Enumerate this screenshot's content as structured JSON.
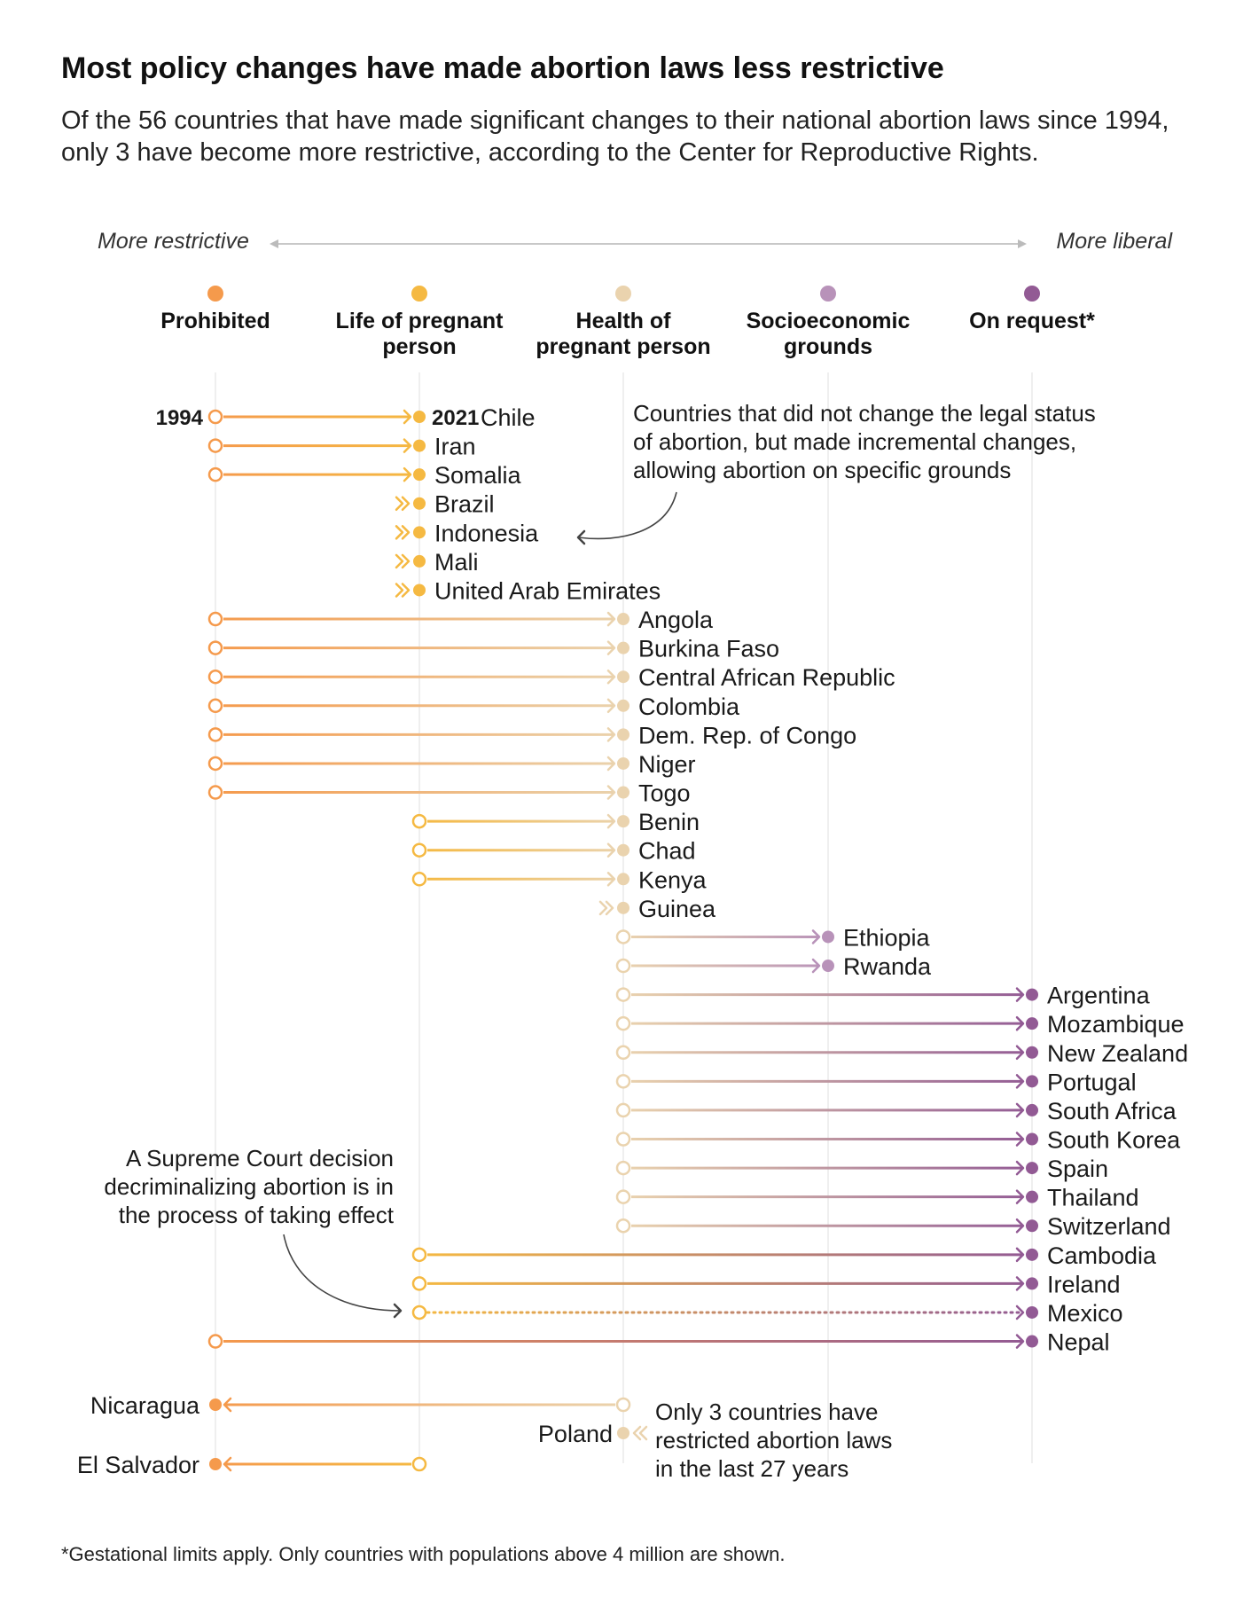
{
  "title": "Most policy changes have made abortion laws less restrictive",
  "subtitle": "Of the 56 countries that have made significant changes to their national abortion laws since 1994, only 3 have become more restrictive, according to the Center for Reproductive Rights.",
  "footnote": "*Gestational limits apply. Only countries with populations above 4 million are shown.",
  "chart_data": {
    "type": "dot-arrow",
    "scale": {
      "left_label": "More restrictive",
      "right_label": "More liberal"
    },
    "categories": [
      {
        "id": "prohibited",
        "label": [
          "Prohibited"
        ],
        "color": "#f59a4c"
      },
      {
        "id": "life",
        "label": [
          "Life of pregnant",
          "person"
        ],
        "color": "#f5b942"
      },
      {
        "id": "health",
        "label": [
          "Health of",
          "pregnant person"
        ],
        "color": "#ead3ae"
      },
      {
        "id": "socio",
        "label": [
          "Socioeconomic",
          "grounds"
        ],
        "color": "#b892b9"
      },
      {
        "id": "request",
        "label": [
          "On request*"
        ],
        "color": "#925a94"
      }
    ],
    "year_labels": {
      "from": "1994",
      "to": "2021"
    },
    "liberalized": [
      {
        "country": "Chile",
        "from": "prohibited",
        "to": "life"
      },
      {
        "country": "Iran",
        "from": "prohibited",
        "to": "life"
      },
      {
        "country": "Somalia",
        "from": "prohibited",
        "to": "life"
      },
      {
        "country": "Brazil",
        "from": "life",
        "to": "life",
        "incremental": true
      },
      {
        "country": "Indonesia",
        "from": "life",
        "to": "life",
        "incremental": true
      },
      {
        "country": "Mali",
        "from": "life",
        "to": "life",
        "incremental": true
      },
      {
        "country": "United Arab Emirates",
        "from": "life",
        "to": "life",
        "incremental": true
      },
      {
        "country": "Angola",
        "from": "prohibited",
        "to": "health"
      },
      {
        "country": "Burkina Faso",
        "from": "prohibited",
        "to": "health"
      },
      {
        "country": "Central African Republic",
        "from": "prohibited",
        "to": "health"
      },
      {
        "country": "Colombia",
        "from": "prohibited",
        "to": "health"
      },
      {
        "country": "Dem. Rep. of Congo",
        "from": "prohibited",
        "to": "health"
      },
      {
        "country": "Niger",
        "from": "prohibited",
        "to": "health"
      },
      {
        "country": "Togo",
        "from": "prohibited",
        "to": "health"
      },
      {
        "country": "Benin",
        "from": "life",
        "to": "health"
      },
      {
        "country": "Chad",
        "from": "life",
        "to": "health"
      },
      {
        "country": "Kenya",
        "from": "life",
        "to": "health"
      },
      {
        "country": "Guinea",
        "from": "health",
        "to": "health",
        "incremental": true
      },
      {
        "country": "Ethiopia",
        "from": "health",
        "to": "socio"
      },
      {
        "country": "Rwanda",
        "from": "health",
        "to": "socio"
      },
      {
        "country": "Argentina",
        "from": "health",
        "to": "request"
      },
      {
        "country": "Mozambique",
        "from": "health",
        "to": "request"
      },
      {
        "country": "New Zealand",
        "from": "health",
        "to": "request"
      },
      {
        "country": "Portugal",
        "from": "health",
        "to": "request"
      },
      {
        "country": "South Africa",
        "from": "health",
        "to": "request"
      },
      {
        "country": "South Korea",
        "from": "health",
        "to": "request"
      },
      {
        "country": "Spain",
        "from": "health",
        "to": "request"
      },
      {
        "country": "Thailand",
        "from": "health",
        "to": "request"
      },
      {
        "country": "Switzerland",
        "from": "health",
        "to": "request"
      },
      {
        "country": "Cambodia",
        "from": "life",
        "to": "request"
      },
      {
        "country": "Ireland",
        "from": "life",
        "to": "request"
      },
      {
        "country": "Mexico",
        "from": "life",
        "to": "request",
        "pending": true
      },
      {
        "country": "Nepal",
        "from": "prohibited",
        "to": "request"
      }
    ],
    "restricted": [
      {
        "country": "Nicaragua",
        "from": "health",
        "to": "prohibited"
      },
      {
        "country": "Poland",
        "from": "health",
        "to": "health",
        "incremental": true
      },
      {
        "country": "El Salvador",
        "from": "life",
        "to": "prohibited"
      }
    ],
    "annotations": {
      "incremental": [
        "Countries that did not change the legal status",
        "of abortion, but made incremental changes,",
        "allowing abortion on specific grounds"
      ],
      "mexico": [
        "A Supreme Court decision",
        "decriminalizing abortion is in",
        "the process of taking effect"
      ],
      "restricted": [
        "Only 3 countries have",
        "restricted abortion laws",
        "in the last 27 years"
      ]
    }
  }
}
